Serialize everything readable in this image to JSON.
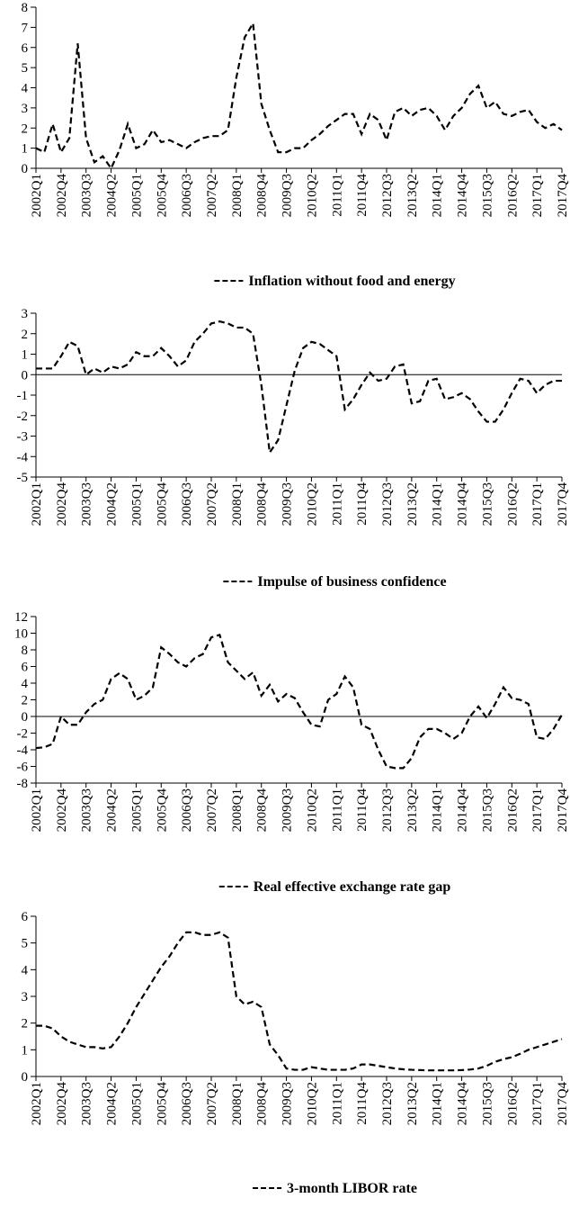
{
  "chart_data": [
    {
      "type": "line",
      "categories": [
        "2002Q1",
        null,
        null,
        "2002Q4",
        null,
        null,
        "2003Q3",
        null,
        null,
        "2004Q2",
        null,
        null,
        "2005Q1",
        null,
        null,
        "2005Q4",
        null,
        null,
        "2006Q3",
        null,
        null,
        "2007Q2",
        null,
        null,
        "2008Q1",
        null,
        null,
        "2008Q4",
        null,
        null,
        "2009Q3",
        null,
        null,
        "2010Q2",
        null,
        null,
        "2011Q1",
        null,
        null,
        "2011Q4",
        null,
        null,
        "2012Q3",
        null,
        null,
        "2013Q2",
        null,
        null,
        "2014Q1",
        null,
        null,
        "2014Q4",
        null,
        null,
        "2015Q3",
        null,
        null,
        "2016Q2",
        null,
        null,
        "2017Q1",
        null,
        null,
        "2017Q4"
      ],
      "series": [
        {
          "name": "Inflation without food and energy",
          "color": "#000000",
          "values": [
            1.0,
            0.8,
            2.2,
            0.8,
            1.5,
            6.2,
            1.5,
            0.3,
            0.6,
            0.0,
            0.9,
            2.2,
            1.0,
            1.2,
            1.9,
            1.3,
            1.4,
            1.2,
            1.0,
            1.3,
            1.5,
            1.6,
            1.6,
            1.9,
            4.5,
            6.5,
            7.2,
            3.2,
            1.9,
            0.8,
            0.8,
            1.0,
            1.0,
            1.4,
            1.7,
            2.1,
            2.4,
            2.7,
            2.7,
            1.7,
            2.7,
            2.4,
            1.4,
            2.8,
            3.0,
            2.6,
            2.9,
            3.0,
            2.6,
            1.9,
            2.6,
            3.0,
            3.7,
            4.1,
            3.0,
            3.3,
            2.7,
            2.6,
            2.8,
            2.9,
            2.3,
            2.0,
            2.2,
            1.9
          ]
        }
      ],
      "ylim": [
        0,
        8
      ],
      "yticks": [
        0,
        1,
        2,
        3,
        4,
        5,
        6,
        7,
        8
      ]
    },
    {
      "type": "line",
      "categories": [
        "2002Q1",
        null,
        null,
        "2002Q4",
        null,
        null,
        "2003Q3",
        null,
        null,
        "2004Q2",
        null,
        null,
        "2005Q1",
        null,
        null,
        "2005Q4",
        null,
        null,
        "2006Q3",
        null,
        null,
        "2007Q2",
        null,
        null,
        "2008Q1",
        null,
        null,
        "2008Q4",
        null,
        null,
        "2009Q3",
        null,
        null,
        "2010Q2",
        null,
        null,
        "2011Q1",
        null,
        null,
        "2011Q4",
        null,
        null,
        "2012Q3",
        null,
        null,
        "2013Q2",
        null,
        null,
        "2014Q1",
        null,
        null,
        "2014Q4",
        null,
        null,
        "2015Q3",
        null,
        null,
        "2016Q2",
        null,
        null,
        "2017Q1",
        null,
        null,
        "2017Q4"
      ],
      "series": [
        {
          "name": "Impulse of business confidence",
          "color": "#000000",
          "values": [
            0.3,
            0.3,
            0.3,
            0.9,
            1.6,
            1.4,
            0.0,
            0.3,
            0.1,
            0.4,
            0.3,
            0.5,
            1.1,
            0.9,
            0.9,
            1.3,
            0.9,
            0.4,
            0.7,
            1.6,
            2.0,
            2.5,
            2.6,
            2.5,
            2.3,
            2.3,
            2.0,
            -0.5,
            -3.8,
            -3.2,
            -1.5,
            0.2,
            1.3,
            1.6,
            1.5,
            1.2,
            0.9,
            -1.7,
            -1.2,
            -0.5,
            0.1,
            -0.3,
            -0.2,
            0.4,
            0.5,
            -1.4,
            -1.3,
            -0.3,
            -0.2,
            -1.2,
            -1.1,
            -0.9,
            -1.2,
            -1.8,
            -2.3,
            -2.3,
            -1.7,
            -0.9,
            -0.2,
            -0.3,
            -0.9,
            -0.5,
            -0.3,
            -0.3
          ]
        }
      ],
      "ylim": [
        -5,
        3
      ],
      "yticks": [
        -5,
        -4,
        -3,
        -2,
        -1,
        0,
        1,
        2,
        3
      ]
    },
    {
      "type": "line",
      "categories": [
        "2002Q1",
        null,
        null,
        "2002Q4",
        null,
        null,
        "2003Q3",
        null,
        null,
        "2004Q2",
        null,
        null,
        "2005Q1",
        null,
        null,
        "2005Q4",
        null,
        null,
        "2006Q3",
        null,
        null,
        "2007Q2",
        null,
        null,
        "2008Q1",
        null,
        null,
        "2008Q4",
        null,
        null,
        "2009Q3",
        null,
        null,
        "2010Q2",
        null,
        null,
        "2011Q1",
        null,
        null,
        "2011Q4",
        null,
        null,
        "2012Q3",
        null,
        null,
        "2013Q2",
        null,
        null,
        "2014Q1",
        null,
        null,
        "2014Q4",
        null,
        null,
        "2015Q3",
        null,
        null,
        "2016Q2",
        null,
        null,
        "2017Q1",
        null,
        null,
        "2017Q4"
      ],
      "series": [
        {
          "name": "Real effective exchange rate gap",
          "color": "#000000",
          "values": [
            -3.8,
            -3.7,
            -3.3,
            0.0,
            -1.0,
            -1.0,
            0.5,
            1.5,
            2.0,
            4.5,
            5.2,
            4.5,
            2.0,
            2.5,
            3.5,
            8.3,
            7.5,
            6.5,
            6.0,
            7.0,
            7.5,
            9.5,
            9.8,
            6.5,
            5.5,
            4.5,
            5.3,
            2.5,
            3.8,
            1.8,
            2.7,
            2.2,
            0.5,
            -1.0,
            -1.2,
            2.0,
            2.7,
            4.8,
            3.5,
            -1.0,
            -1.5,
            -4.0,
            -6.0,
            -6.2,
            -6.2,
            -5.0,
            -2.5,
            -1.5,
            -1.5,
            -2.0,
            -2.7,
            -2.0,
            0.0,
            1.2,
            -0.2,
            1.5,
            3.5,
            2.2,
            2.0,
            1.5,
            -2.5,
            -2.7,
            -1.5,
            0.2
          ]
        }
      ],
      "ylim": [
        -8,
        12
      ],
      "yticks": [
        -8,
        -6,
        -4,
        -2,
        0,
        2,
        4,
        6,
        8,
        10,
        12
      ]
    },
    {
      "type": "line",
      "categories": [
        "2002Q1",
        null,
        null,
        "2002Q4",
        null,
        null,
        "2003Q3",
        null,
        null,
        "2004Q2",
        null,
        null,
        "2005Q1",
        null,
        null,
        "2005Q4",
        null,
        null,
        "2006Q3",
        null,
        null,
        "2007Q2",
        null,
        null,
        "2008Q1",
        null,
        null,
        "2008Q4",
        null,
        null,
        "2009Q3",
        null,
        null,
        "2010Q2",
        null,
        null,
        "2011Q1",
        null,
        null,
        "2011Q4",
        null,
        null,
        "2012Q3",
        null,
        null,
        "2013Q2",
        null,
        null,
        "2014Q1",
        null,
        null,
        "2014Q4",
        null,
        null,
        "2015Q3",
        null,
        null,
        "2016Q2",
        null,
        null,
        "2017Q1",
        null,
        null,
        "2017Q4"
      ],
      "series": [
        {
          "name": "3-month LIBOR rate",
          "color": "#000000",
          "values": [
            1.9,
            1.9,
            1.8,
            1.5,
            1.3,
            1.2,
            1.1,
            1.1,
            1.05,
            1.1,
            1.5,
            2.0,
            2.6,
            3.1,
            3.6,
            4.1,
            4.5,
            5.0,
            5.4,
            5.4,
            5.3,
            5.3,
            5.4,
            5.2,
            3.0,
            2.7,
            2.8,
            2.6,
            1.2,
            0.8,
            0.3,
            0.25,
            0.25,
            0.35,
            0.3,
            0.25,
            0.25,
            0.25,
            0.3,
            0.45,
            0.45,
            0.4,
            0.35,
            0.3,
            0.27,
            0.25,
            0.24,
            0.23,
            0.23,
            0.23,
            0.23,
            0.24,
            0.26,
            0.3,
            0.4,
            0.55,
            0.65,
            0.72,
            0.85,
            1.0,
            1.1,
            1.2,
            1.3,
            1.4
          ]
        }
      ],
      "ylim": [
        0,
        6
      ],
      "yticks": [
        0,
        1,
        2,
        3,
        4,
        5,
        6
      ]
    }
  ]
}
